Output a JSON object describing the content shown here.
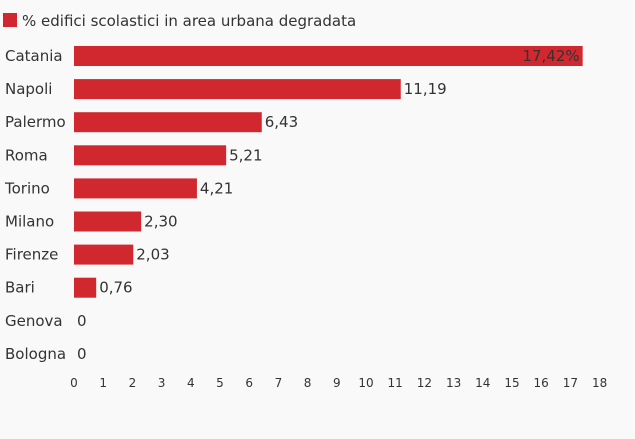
{
  "chart_data": {
    "type": "bar",
    "orientation": "horizontal",
    "categories": [
      "Catania",
      "Napoli",
      "Palermo",
      "Roma",
      "Torino",
      "Milano",
      "Firenze",
      "Bari",
      "Genova",
      "Bologna"
    ],
    "series": [
      {
        "name": "% edifici scolastici in area urbana degradata",
        "values": [
          17.42,
          11.19,
          6.43,
          5.21,
          4.21,
          2.3,
          2.03,
          0.76,
          0,
          0
        ],
        "value_labels": [
          "17,42%",
          "11,19",
          "6,43",
          "5,21",
          "4,21",
          "2,30",
          "2,03",
          "0,76",
          "0",
          "0"
        ],
        "color": "#d1282f"
      }
    ],
    "xlim": [
      0,
      18
    ],
    "x_ticks": [
      "0",
      "1",
      "2",
      "3",
      "4",
      "5",
      "6",
      "7",
      "8",
      "9",
      "10",
      "11",
      "12",
      "13",
      "14",
      "15",
      "16",
      "17",
      "18"
    ],
    "grid": false,
    "legend": "top-left"
  },
  "colors": {
    "bar": "#d1282f",
    "text": "#333333",
    "background": "#f9f9f9"
  }
}
